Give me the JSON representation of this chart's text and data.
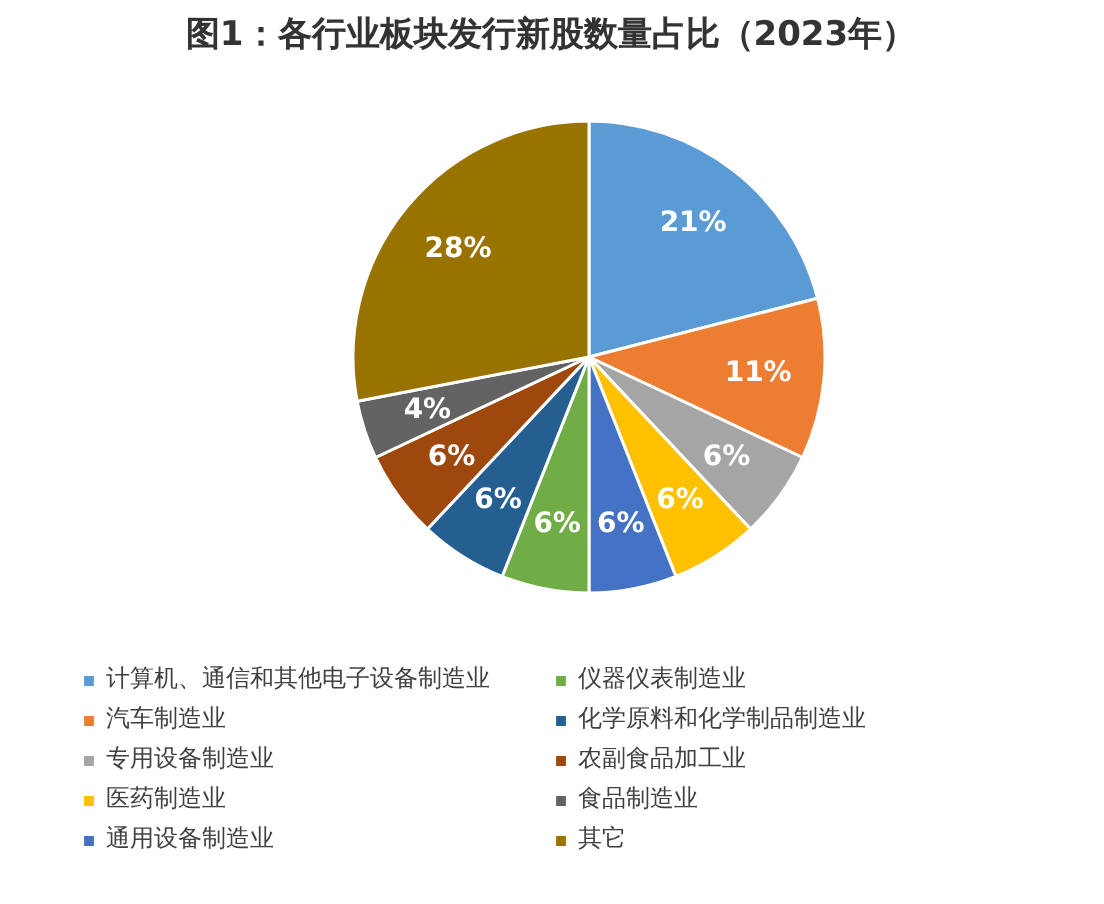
{
  "chart_data": {
    "type": "pie",
    "title": "图1：各行业板块发行新股数量占比（2023年）",
    "categories": [
      "计算机、通信和其他电子设备制造业",
      "汽车制造业",
      "专用设备制造业",
      "医药制造业",
      "通用设备制造业",
      "仪器仪表制造业",
      "化学原料和化学制品制造业",
      "农副食品加工业",
      "食品制造业",
      "其它"
    ],
    "values": [
      21,
      11,
      6,
      6,
      6,
      6,
      6,
      6,
      4,
      28
    ],
    "colors": [
      "#5b9bd5",
      "#ed7d31",
      "#a5a5a5",
      "#ffc000",
      "#4472c4",
      "#70ad47",
      "#255e91",
      "#9e480e",
      "#636363",
      "#997300"
    ],
    "value_labels": [
      "21%",
      "11%",
      "6%",
      "6%",
      "6%",
      "6%",
      "6%",
      "6%",
      "4%",
      "28%"
    ],
    "legend": "bottom"
  }
}
